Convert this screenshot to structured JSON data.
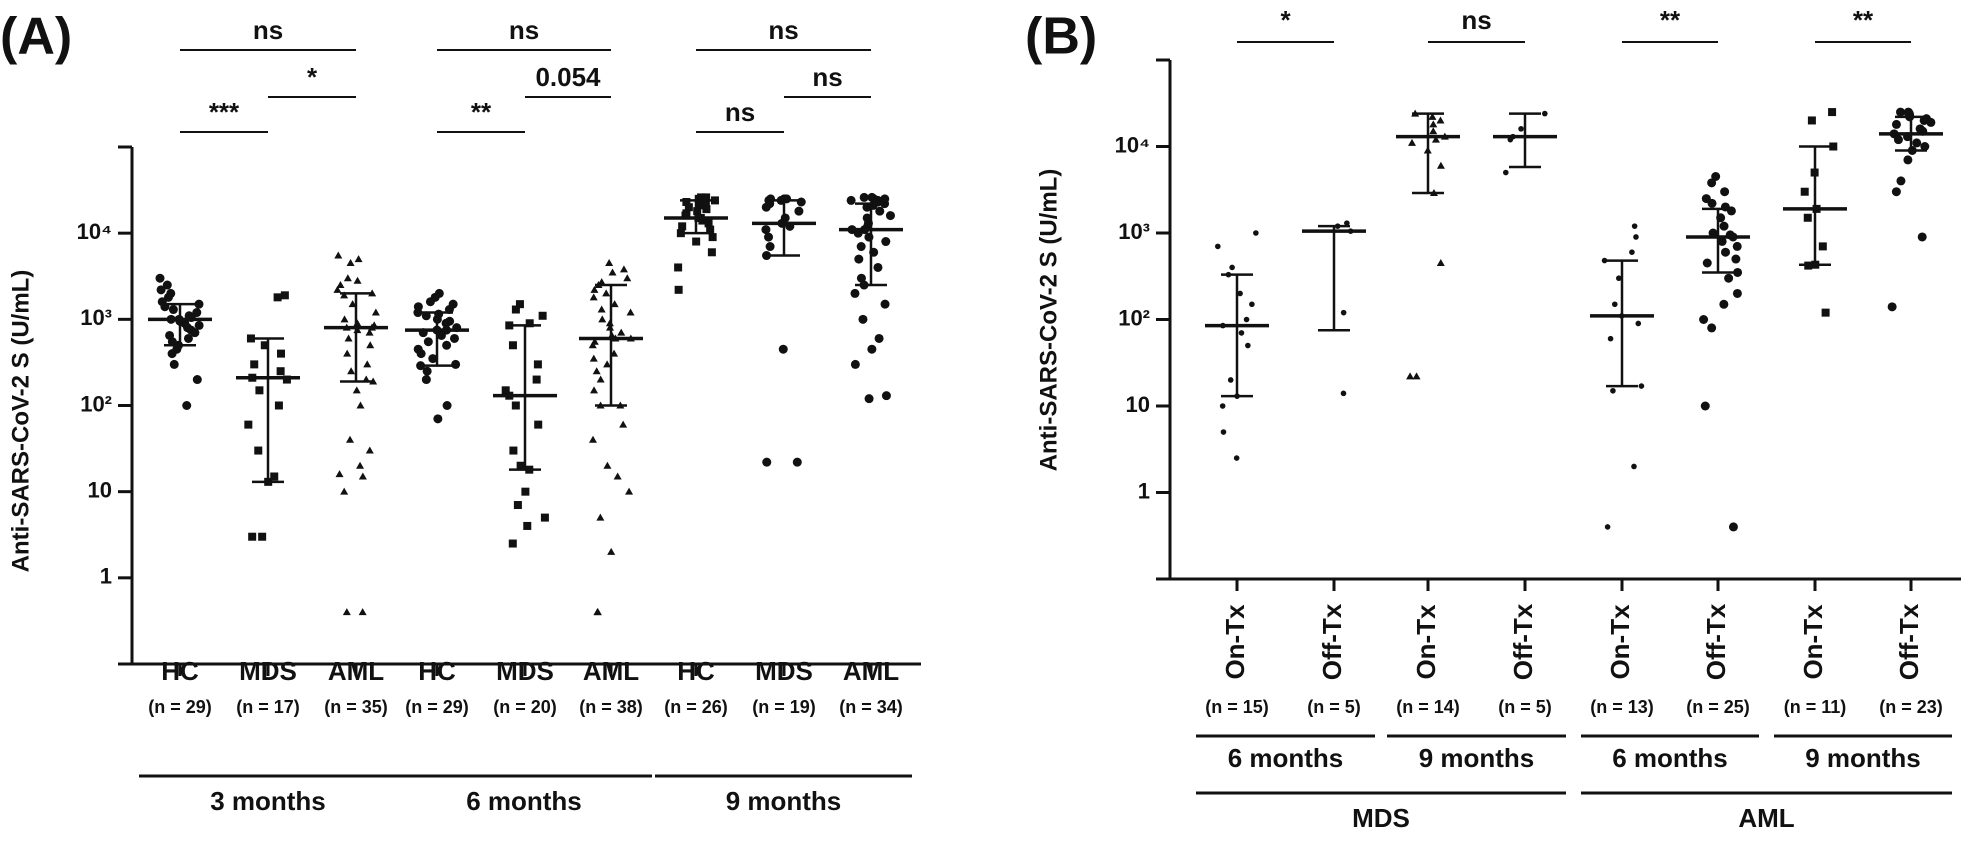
{
  "chart_data": [
    {
      "type": "dot",
      "panel_label": "(A)",
      "ylabel": "Anti-SARS-CoV-2 S (U/mL)",
      "log_scale": true,
      "ylim": [
        0.1,
        100000
      ],
      "yticks": [
        1,
        10,
        {
          "value": 100,
          "label": "10²"
        },
        {
          "value": 1000,
          "label": "10³"
        },
        {
          "value": 10000,
          "label": "10⁴"
        }
      ],
      "categories": [
        "HC",
        "MDS",
        "AML",
        "HC",
        "MDS",
        "AML",
        "HC",
        "MDS",
        "AML"
      ],
      "n_labels": [
        "(n = 29)",
        "(n = 17)",
        "(n = 35)",
        "(n = 29)",
        "(n = 20)",
        "(n = 38)",
        "(n = 26)",
        "(n = 19)",
        "(n = 34)"
      ],
      "periods": [
        "3 months",
        "6 months",
        "9 months"
      ],
      "brackets": [
        [
          "ns",
          "*",
          "***"
        ],
        [
          "ns",
          "0.054",
          "**"
        ],
        [
          "ns",
          "ns",
          "ns"
        ]
      ],
      "markers": [
        "circle",
        "square",
        "triangle",
        "circle",
        "square",
        "triangle",
        "square",
        "circle",
        "circle"
      ],
      "color": "#111111",
      "median": [
        1000,
        210,
        800,
        750,
        130,
        600,
        15000,
        13000,
        11000
      ],
      "q1": [
        500,
        13,
        190,
        290,
        18,
        100,
        10000,
        5500,
        2500
      ],
      "q3": [
        1500,
        600,
        2000,
        1200,
        850,
        2500,
        24000,
        24000,
        22000
      ],
      "points": [
        [
          3000,
          2500,
          2200,
          2000,
          1800,
          1600,
          1500,
          1400,
          1300,
          1200,
          1100,
          1050,
          1000,
          1000,
          950,
          900,
          850,
          800,
          750,
          700,
          650,
          600,
          550,
          500,
          450,
          400,
          300,
          200,
          100
        ],
        [
          1900,
          1800,
          600,
          500,
          400,
          300,
          250,
          210,
          200,
          150,
          100,
          60,
          30,
          15,
          13,
          3,
          3
        ],
        [
          5500,
          5000,
          4500,
          3000,
          2800,
          2500,
          2200,
          2000,
          1900,
          1500,
          1200,
          1000,
          900,
          850,
          800,
          800,
          750,
          700,
          600,
          500,
          400,
          300,
          250,
          200,
          190,
          150,
          100,
          40,
          30,
          20,
          16,
          15,
          10,
          0.4,
          0.4
        ],
        [
          2000,
          1800,
          1600,
          1500,
          1400,
          1300,
          1200,
          1150,
          1100,
          1000,
          950,
          900,
          800,
          750,
          750,
          700,
          650,
          600,
          550,
          500,
          450,
          400,
          350,
          300,
          290,
          250,
          200,
          100,
          70
        ],
        [
          1500,
          1300,
          1100,
          900,
          850,
          500,
          300,
          200,
          150,
          130,
          100,
          60,
          30,
          20,
          18,
          10,
          7,
          5,
          4,
          2.5
        ],
        [
          4500,
          3800,
          3500,
          3000,
          2700,
          2500,
          2200,
          2000,
          1800,
          1500,
          1300,
          1200,
          1000,
          900,
          800,
          700,
          650,
          600,
          600,
          550,
          500,
          400,
          350,
          300,
          250,
          200,
          150,
          100,
          100,
          60,
          40,
          20,
          15,
          10,
          5,
          2,
          0.4,
          0.4
        ],
        [
          26000,
          26000,
          25000,
          25000,
          24000,
          24000,
          23000,
          22000,
          21000,
          20000,
          19000,
          18000,
          17000,
          16000,
          15000,
          15000,
          14000,
          13000,
          12000,
          11000,
          10000,
          9000,
          8000,
          6000,
          4000,
          2200
        ],
        [
          25000,
          25000,
          25000,
          24000,
          24000,
          23000,
          22000,
          20000,
          18000,
          15000,
          13000,
          12000,
          11000,
          9000,
          7000,
          5500,
          450,
          22,
          22
        ],
        [
          26000,
          26000,
          25000,
          25000,
          24000,
          24000,
          23000,
          22000,
          21000,
          20000,
          18000,
          16000,
          15000,
          13000,
          12000,
          11000,
          11000,
          10000,
          9000,
          8000,
          7000,
          6000,
          5000,
          4000,
          3000,
          2500,
          2000,
          1500,
          1000,
          600,
          450,
          300,
          130,
          120
        ]
      ]
    },
    {
      "type": "dot",
      "panel_label": "(B)",
      "ylabel": "Anti-SARS-CoV-2 S (U/mL)",
      "log_scale": true,
      "ylim": [
        0.1,
        100000
      ],
      "yticks": [
        1,
        10,
        {
          "value": 100,
          "label": "10²"
        },
        {
          "value": 1000,
          "label": "10³"
        },
        {
          "value": 10000,
          "label": "10⁴"
        }
      ],
      "categories": [
        "On-Tx",
        "Off-Tx",
        "On-Tx",
        "Off-Tx",
        "On-Tx",
        "Off-Tx",
        "On-Tx",
        "Off-Tx"
      ],
      "n_labels": [
        "(n = 15)",
        "(n = 5)",
        "(n = 14)",
        "(n = 5)",
        "(n = 13)",
        "(n = 25)",
        "(n = 11)",
        "(n = 23)"
      ],
      "periods": [
        "6 months",
        "9 months",
        "6 months",
        "9 months"
      ],
      "cohorts": [
        "MDS",
        "AML"
      ],
      "brackets": [
        "*",
        "ns",
        "**",
        "**"
      ],
      "markers": [
        "dot",
        "dot",
        "triangle",
        "dot",
        "dot",
        "circle",
        "square",
        "circle"
      ],
      "color": "#111111",
      "median": [
        85,
        1050,
        13000,
        13000,
        110,
        900,
        1900,
        14000
      ],
      "q1": [
        13,
        75,
        2900,
        5800,
        17,
        350,
        430,
        9000
      ],
      "q3": [
        330,
        1200,
        24000,
        24000,
        480,
        1900,
        10000,
        22000
      ],
      "points": [
        [
          1000,
          700,
          400,
          330,
          200,
          150,
          100,
          85,
          70,
          50,
          20,
          13,
          10,
          5,
          2.5
        ],
        [
          1300,
          1200,
          1050,
          120,
          14
        ],
        [
          24000,
          22000,
          20000,
          18000,
          15000,
          13000,
          12000,
          11000,
          9000,
          6000,
          2900,
          450,
          22,
          22
        ],
        [
          24000,
          16000,
          13000,
          12000,
          5000
        ],
        [
          1200,
          900,
          600,
          480,
          300,
          150,
          110,
          90,
          60,
          17,
          15,
          2,
          0.4
        ],
        [
          4500,
          3800,
          3000,
          2500,
          2200,
          2000,
          1800,
          1500,
          1200,
          1000,
          950,
          900,
          800,
          700,
          600,
          500,
          450,
          350,
          300,
          200,
          150,
          100,
          80,
          10,
          0.4
        ],
        [
          25000,
          20000,
          10000,
          5000,
          3000,
          1900,
          1500,
          700,
          430,
          420,
          120
        ],
        [
          25000,
          25000,
          24000,
          24000,
          23000,
          22000,
          21000,
          20000,
          19000,
          18000,
          16000,
          15000,
          14000,
          13000,
          12000,
          11000,
          10000,
          9000,
          7000,
          4000,
          3000,
          900,
          140
        ]
      ]
    }
  ]
}
